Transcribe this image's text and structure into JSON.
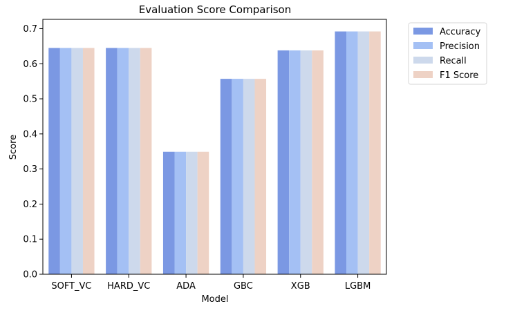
{
  "chart_data": {
    "type": "bar",
    "title": "Evaluation Score Comparison",
    "xlabel": "Model",
    "ylabel": "Score",
    "categories": [
      "SOFT_VC",
      "HARD_VC",
      "ADA",
      "GBC",
      "XGB",
      "LGBM"
    ],
    "series": [
      {
        "name": "Accuracy",
        "color": "#7b98e3",
        "values": [
          0.645,
          0.645,
          0.349,
          0.557,
          0.638,
          0.692
        ]
      },
      {
        "name": "Precision",
        "color": "#a4c0f4",
        "values": [
          0.645,
          0.645,
          0.349,
          0.557,
          0.638,
          0.692
        ]
      },
      {
        "name": "Recall",
        "color": "#cdd9ec",
        "values": [
          0.645,
          0.645,
          0.349,
          0.557,
          0.638,
          0.692
        ]
      },
      {
        "name": "F1 Score",
        "color": "#eed2c5",
        "values": [
          0.645,
          0.645,
          0.349,
          0.557,
          0.638,
          0.692
        ]
      }
    ],
    "ylim": [
      0,
      0.7265
    ],
    "yticks": [
      "0.0",
      "0.1",
      "0.2",
      "0.3",
      "0.4",
      "0.5",
      "0.6",
      "0.7"
    ],
    "grid": false,
    "legend_position": "outside-top-right"
  }
}
